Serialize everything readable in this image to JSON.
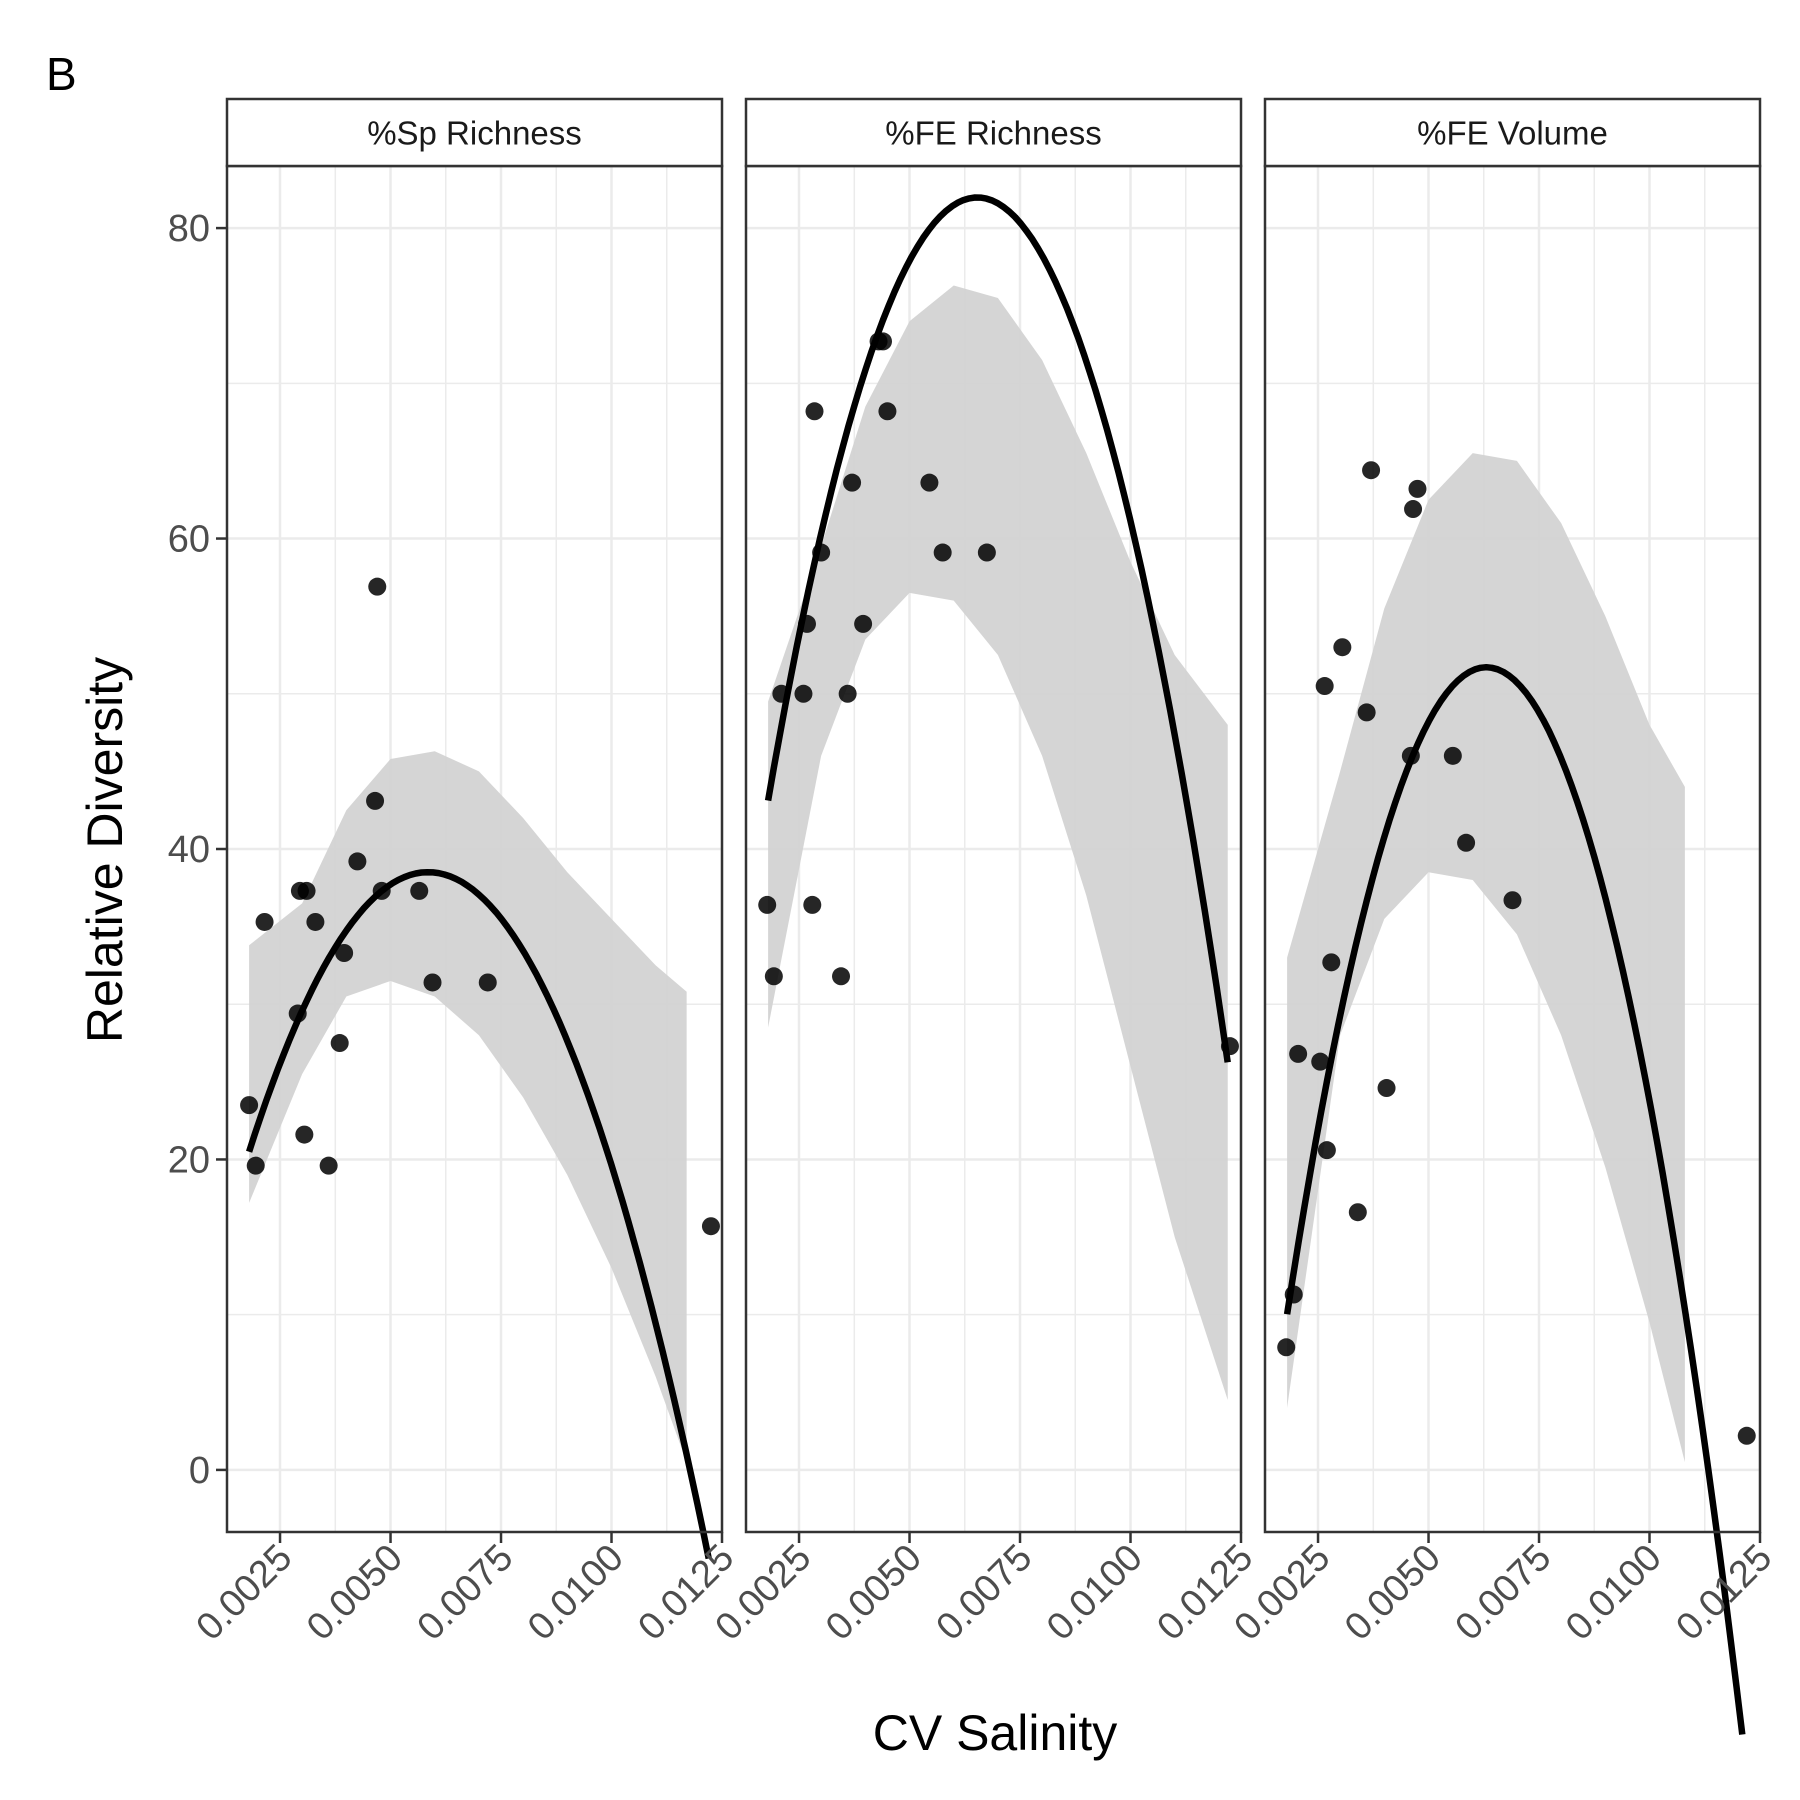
{
  "panel_label": "B",
  "chart_data": {
    "type": "scatter",
    "xlabel": "CV Salinity",
    "ylabel": "Relative Diversity",
    "xlim": [
      0.0013,
      0.0125
    ],
    "ylim": [
      -4,
      84
    ],
    "x_ticks": [
      0.0025,
      0.005,
      0.0075,
      0.01,
      0.0125
    ],
    "x_tick_labels": [
      "0.0025",
      "0.0050",
      "0.0075",
      "0.0100",
      "0.0125"
    ],
    "y_ticks": [
      0,
      20,
      40,
      60,
      80
    ],
    "y_tick_labels": [
      "0",
      "20",
      "40",
      "60",
      "80"
    ],
    "grid": true,
    "colors": {
      "points": "#000000",
      "fit_line": "#000000",
      "ribbon": "#d3d3d3",
      "grid": "#ebebeb",
      "border": "#333333"
    },
    "facets": [
      {
        "label": "%Sp Richness",
        "points": [
          {
            "x": 0.0018,
            "y": 23.5
          },
          {
            "x": 0.00195,
            "y": 19.6
          },
          {
            "x": 0.00215,
            "y": 35.3
          },
          {
            "x": 0.0029,
            "y": 29.4
          },
          {
            "x": 0.00295,
            "y": 37.3
          },
          {
            "x": 0.00305,
            "y": 21.6
          },
          {
            "x": 0.0031,
            "y": 37.3
          },
          {
            "x": 0.0033,
            "y": 35.3
          },
          {
            "x": 0.0036,
            "y": 19.6
          },
          {
            "x": 0.00385,
            "y": 27.5
          },
          {
            "x": 0.00395,
            "y": 33.3
          },
          {
            "x": 0.00425,
            "y": 39.2
          },
          {
            "x": 0.00465,
            "y": 43.1
          },
          {
            "x": 0.0047,
            "y": 56.9
          },
          {
            "x": 0.0048,
            "y": 37.3
          },
          {
            "x": 0.00565,
            "y": 37.3
          },
          {
            "x": 0.00595,
            "y": 31.4
          },
          {
            "x": 0.0072,
            "y": 31.4
          },
          {
            "x": 0.01225,
            "y": 15.7
          }
        ],
        "fit": {
          "a": -1097100,
          "b": 12840,
          "c": 0.94,
          "x_start": 0.0018,
          "x_end": 0.0122
        },
        "ribbon_upper": [
          [
            0.0018,
            33.8
          ],
          [
            0.003,
            36.5
          ],
          [
            0.004,
            42.5
          ],
          [
            0.005,
            45.8
          ],
          [
            0.006,
            46.3
          ],
          [
            0.007,
            45.0
          ],
          [
            0.008,
            42.0
          ],
          [
            0.009,
            38.5
          ],
          [
            0.01,
            35.5
          ],
          [
            0.011,
            32.5
          ],
          [
            0.0117,
            30.8
          ]
        ],
        "ribbon_lower": [
          [
            0.0018,
            17.2
          ],
          [
            0.003,
            25.5
          ],
          [
            0.004,
            30.5
          ],
          [
            0.005,
            31.5
          ],
          [
            0.006,
            30.5
          ],
          [
            0.007,
            28.0
          ],
          [
            0.008,
            24.0
          ],
          [
            0.009,
            19.0
          ],
          [
            0.01,
            13.0
          ],
          [
            0.011,
            6.0
          ],
          [
            0.0117,
            0.5
          ]
        ]
      },
      {
        "label": "%FE Richness",
        "points": [
          {
            "x": 0.00178,
            "y": 36.4
          },
          {
            "x": 0.00193,
            "y": 31.8
          },
          {
            "x": 0.0021,
            "y": 50.0
          },
          {
            "x": 0.0026,
            "y": 50.0
          },
          {
            "x": 0.00268,
            "y": 54.5
          },
          {
            "x": 0.0028,
            "y": 36.4
          },
          {
            "x": 0.00285,
            "y": 68.2
          },
          {
            "x": 0.003,
            "y": 59.1
          },
          {
            "x": 0.00345,
            "y": 31.8
          },
          {
            "x": 0.0036,
            "y": 50.0
          },
          {
            "x": 0.0037,
            "y": 63.6
          },
          {
            "x": 0.00395,
            "y": 54.5
          },
          {
            "x": 0.0043,
            "y": 72.7
          },
          {
            "x": 0.0044,
            "y": 72.7
          },
          {
            "x": 0.0045,
            "y": 68.2
          },
          {
            "x": 0.00545,
            "y": 63.6
          },
          {
            "x": 0.00575,
            "y": 59.1
          },
          {
            "x": 0.00675,
            "y": 59.1
          },
          {
            "x": 0.01225,
            "y": 27.3
          }
        ],
        "fit": {
          "a": -1734700,
          "b": 22665,
          "c": 7.94,
          "x_start": 0.0018,
          "x_end": 0.0122
        },
        "ribbon_upper": [
          [
            0.0018,
            49.5
          ],
          [
            0.003,
            59.5
          ],
          [
            0.004,
            68.5
          ],
          [
            0.005,
            74.0
          ],
          [
            0.006,
            76.3
          ],
          [
            0.007,
            75.5
          ],
          [
            0.008,
            71.5
          ],
          [
            0.009,
            65.5
          ],
          [
            0.01,
            58.5
          ],
          [
            0.011,
            52.5
          ],
          [
            0.0122,
            48.0
          ]
        ],
        "ribbon_lower": [
          [
            0.0018,
            28.5
          ],
          [
            0.003,
            46.0
          ],
          [
            0.004,
            53.5
          ],
          [
            0.005,
            56.5
          ],
          [
            0.006,
            56.0
          ],
          [
            0.007,
            52.5
          ],
          [
            0.008,
            46.0
          ],
          [
            0.009,
            37.0
          ],
          [
            0.01,
            26.0
          ],
          [
            0.011,
            15.0
          ],
          [
            0.0122,
            4.5
          ]
        ]
      },
      {
        "label": "%FE Volume",
        "points": [
          {
            "x": 0.00178,
            "y": 7.9
          },
          {
            "x": 0.00195,
            "y": 11.3
          },
          {
            "x": 0.00205,
            "y": 26.8
          },
          {
            "x": 0.00255,
            "y": 26.3
          },
          {
            "x": 0.00265,
            "y": 50.5
          },
          {
            "x": 0.0027,
            "y": 20.6
          },
          {
            "x": 0.0028,
            "y": 32.7
          },
          {
            "x": 0.00305,
            "y": 53.0
          },
          {
            "x": 0.0034,
            "y": 16.6
          },
          {
            "x": 0.0036,
            "y": 48.8
          },
          {
            "x": 0.0037,
            "y": 64.4
          },
          {
            "x": 0.00405,
            "y": 24.6
          },
          {
            "x": 0.0046,
            "y": 46.0
          },
          {
            "x": 0.00465,
            "y": 61.9
          },
          {
            "x": 0.00475,
            "y": 63.2
          },
          {
            "x": 0.00555,
            "y": 46.0
          },
          {
            "x": 0.00585,
            "y": 40.4
          },
          {
            "x": 0.0069,
            "y": 36.7
          },
          {
            "x": 0.0122,
            "y": 2.2
          }
        ],
        "fit": {
          "a": -2050200,
          "b": 25870,
          "c": -29.9,
          "x_start": 0.0018,
          "x_end": 0.0121
        },
        "ribbon_upper": [
          [
            0.0018,
            33.0
          ],
          [
            0.003,
            45.0
          ],
          [
            0.004,
            55.5
          ],
          [
            0.005,
            62.5
          ],
          [
            0.006,
            65.5
          ],
          [
            0.007,
            65.0
          ],
          [
            0.008,
            61.0
          ],
          [
            0.009,
            55.0
          ],
          [
            0.01,
            48.0
          ],
          [
            0.0108,
            44.0
          ]
        ],
        "ribbon_lower": [
          [
            0.0018,
            4.0
          ],
          [
            0.003,
            28.0
          ],
          [
            0.004,
            35.5
          ],
          [
            0.005,
            38.5
          ],
          [
            0.006,
            38.0
          ],
          [
            0.007,
            34.5
          ],
          [
            0.008,
            28.0
          ],
          [
            0.009,
            19.5
          ],
          [
            0.01,
            9.5
          ],
          [
            0.0108,
            0.5
          ]
        ]
      }
    ]
  }
}
